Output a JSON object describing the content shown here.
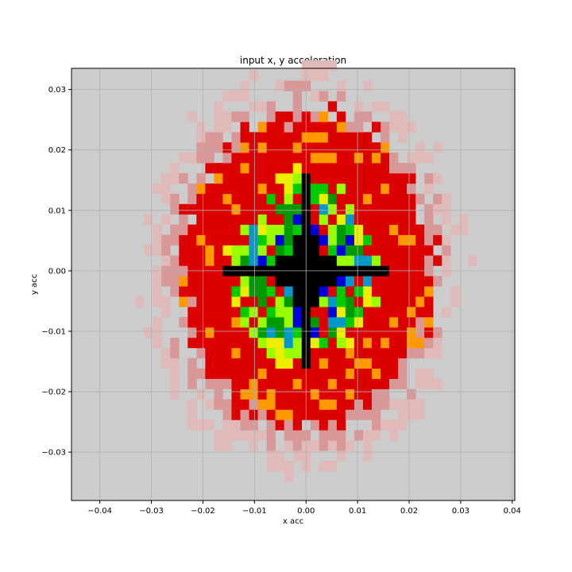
{
  "chart_data": {
    "type": "heatmap",
    "title": "input x, y acceleration",
    "xlabel": "x acc",
    "ylabel": "y acc",
    "xlim": [
      -0.0455,
      0.0405
    ],
    "ylim": [
      -0.038,
      0.0335
    ],
    "xticks": [
      -0.04,
      -0.03,
      -0.02,
      -0.01,
      0.0,
      0.01,
      0.02,
      0.03,
      0.04
    ],
    "yticks": [
      -0.03,
      -0.02,
      -0.01,
      0.0,
      0.01,
      0.02,
      0.03
    ],
    "xtick_labels": [
      "−0.04",
      "−0.03",
      "−0.02",
      "−0.01",
      "0.00",
      "0.01",
      "0.02",
      "0.03",
      "0.04"
    ],
    "ytick_labels": [
      "−0.03",
      "−0.02",
      "−0.01",
      "0.00",
      "0.01",
      "0.02",
      "0.03"
    ],
    "grid": true,
    "background_color": "#cccccc",
    "colormap": "nipy_spectral_r",
    "bin_width": 0.0017,
    "bin_origin_x": 0.0,
    "bin_origin_y": 0.0,
    "value_range": [
      0,
      8
    ],
    "max_radius_x": 0.0285,
    "max_radius_y": 0.0305
  },
  "colors": {
    "faint": "#e0b9b9",
    "pale": "#d89898",
    "red": "#dd0000",
    "orange": "#ff9900",
    "yellow": "#eeee00",
    "lime": "#99ff00",
    "green": "#00cc00",
    "dark_green": "#009900",
    "cyan": "#0099cc",
    "blue": "#0000dd",
    "purple": "#880099",
    "black": "#000000",
    "grid": "#b0b0b0"
  }
}
